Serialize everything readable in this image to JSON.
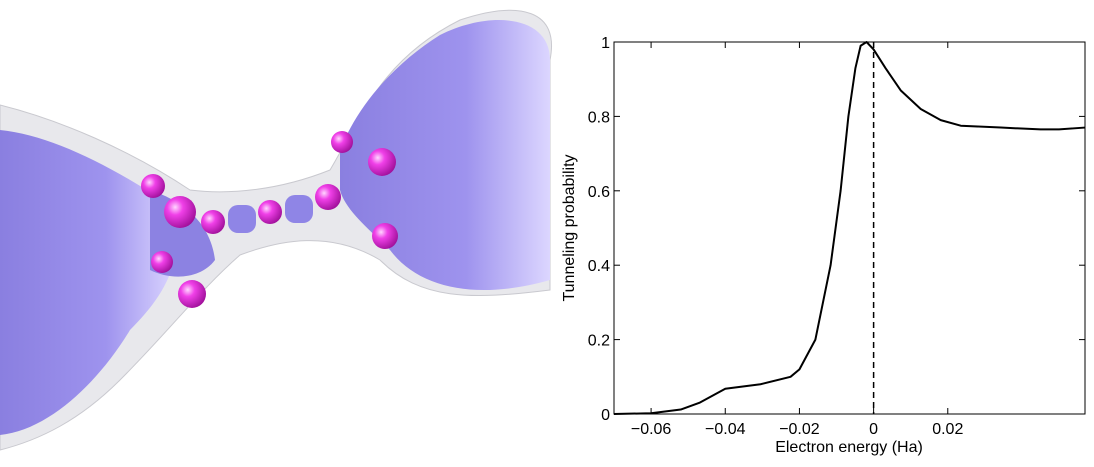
{
  "chart_data": {
    "type": "line",
    "xlabel": "Electron energy (Ha)",
    "ylabel": "Tunneling probability",
    "x": [
      -0.07,
      -0.06,
      -0.052,
      -0.047,
      -0.04,
      -0.0305,
      -0.0224,
      -0.02,
      -0.0157,
      -0.0116,
      -0.0089,
      -0.0068,
      -0.0049,
      -0.0035,
      -0.0019,
      0,
      0.0032,
      0.0073,
      0.0127,
      0.0181,
      0.0235,
      0.0343,
      0.045,
      0.05,
      0.057
    ],
    "values": [
      0,
      0.002,
      0.012,
      0.03,
      0.068,
      0.08,
      0.1,
      0.12,
      0.2,
      0.4,
      0.6,
      0.8,
      0.93,
      0.99,
      1.0,
      0.98,
      0.93,
      0.87,
      0.82,
      0.79,
      0.775,
      0.77,
      0.765,
      0.765,
      0.77
    ],
    "color": "#000000",
    "reference_line_x": 0,
    "xlim": [
      -0.07,
      0.057
    ],
    "ylim": [
      0,
      1
    ],
    "xticks": [
      {
        "value": -0.06,
        "label": "−0.06"
      },
      {
        "value": -0.04,
        "label": "−0.04"
      },
      {
        "value": -0.02,
        "label": "−0.02"
      },
      0,
      0.02
    ],
    "yticks": [
      0,
      0.2,
      0.4,
      0.6,
      0.8,
      1
    ]
  }
}
